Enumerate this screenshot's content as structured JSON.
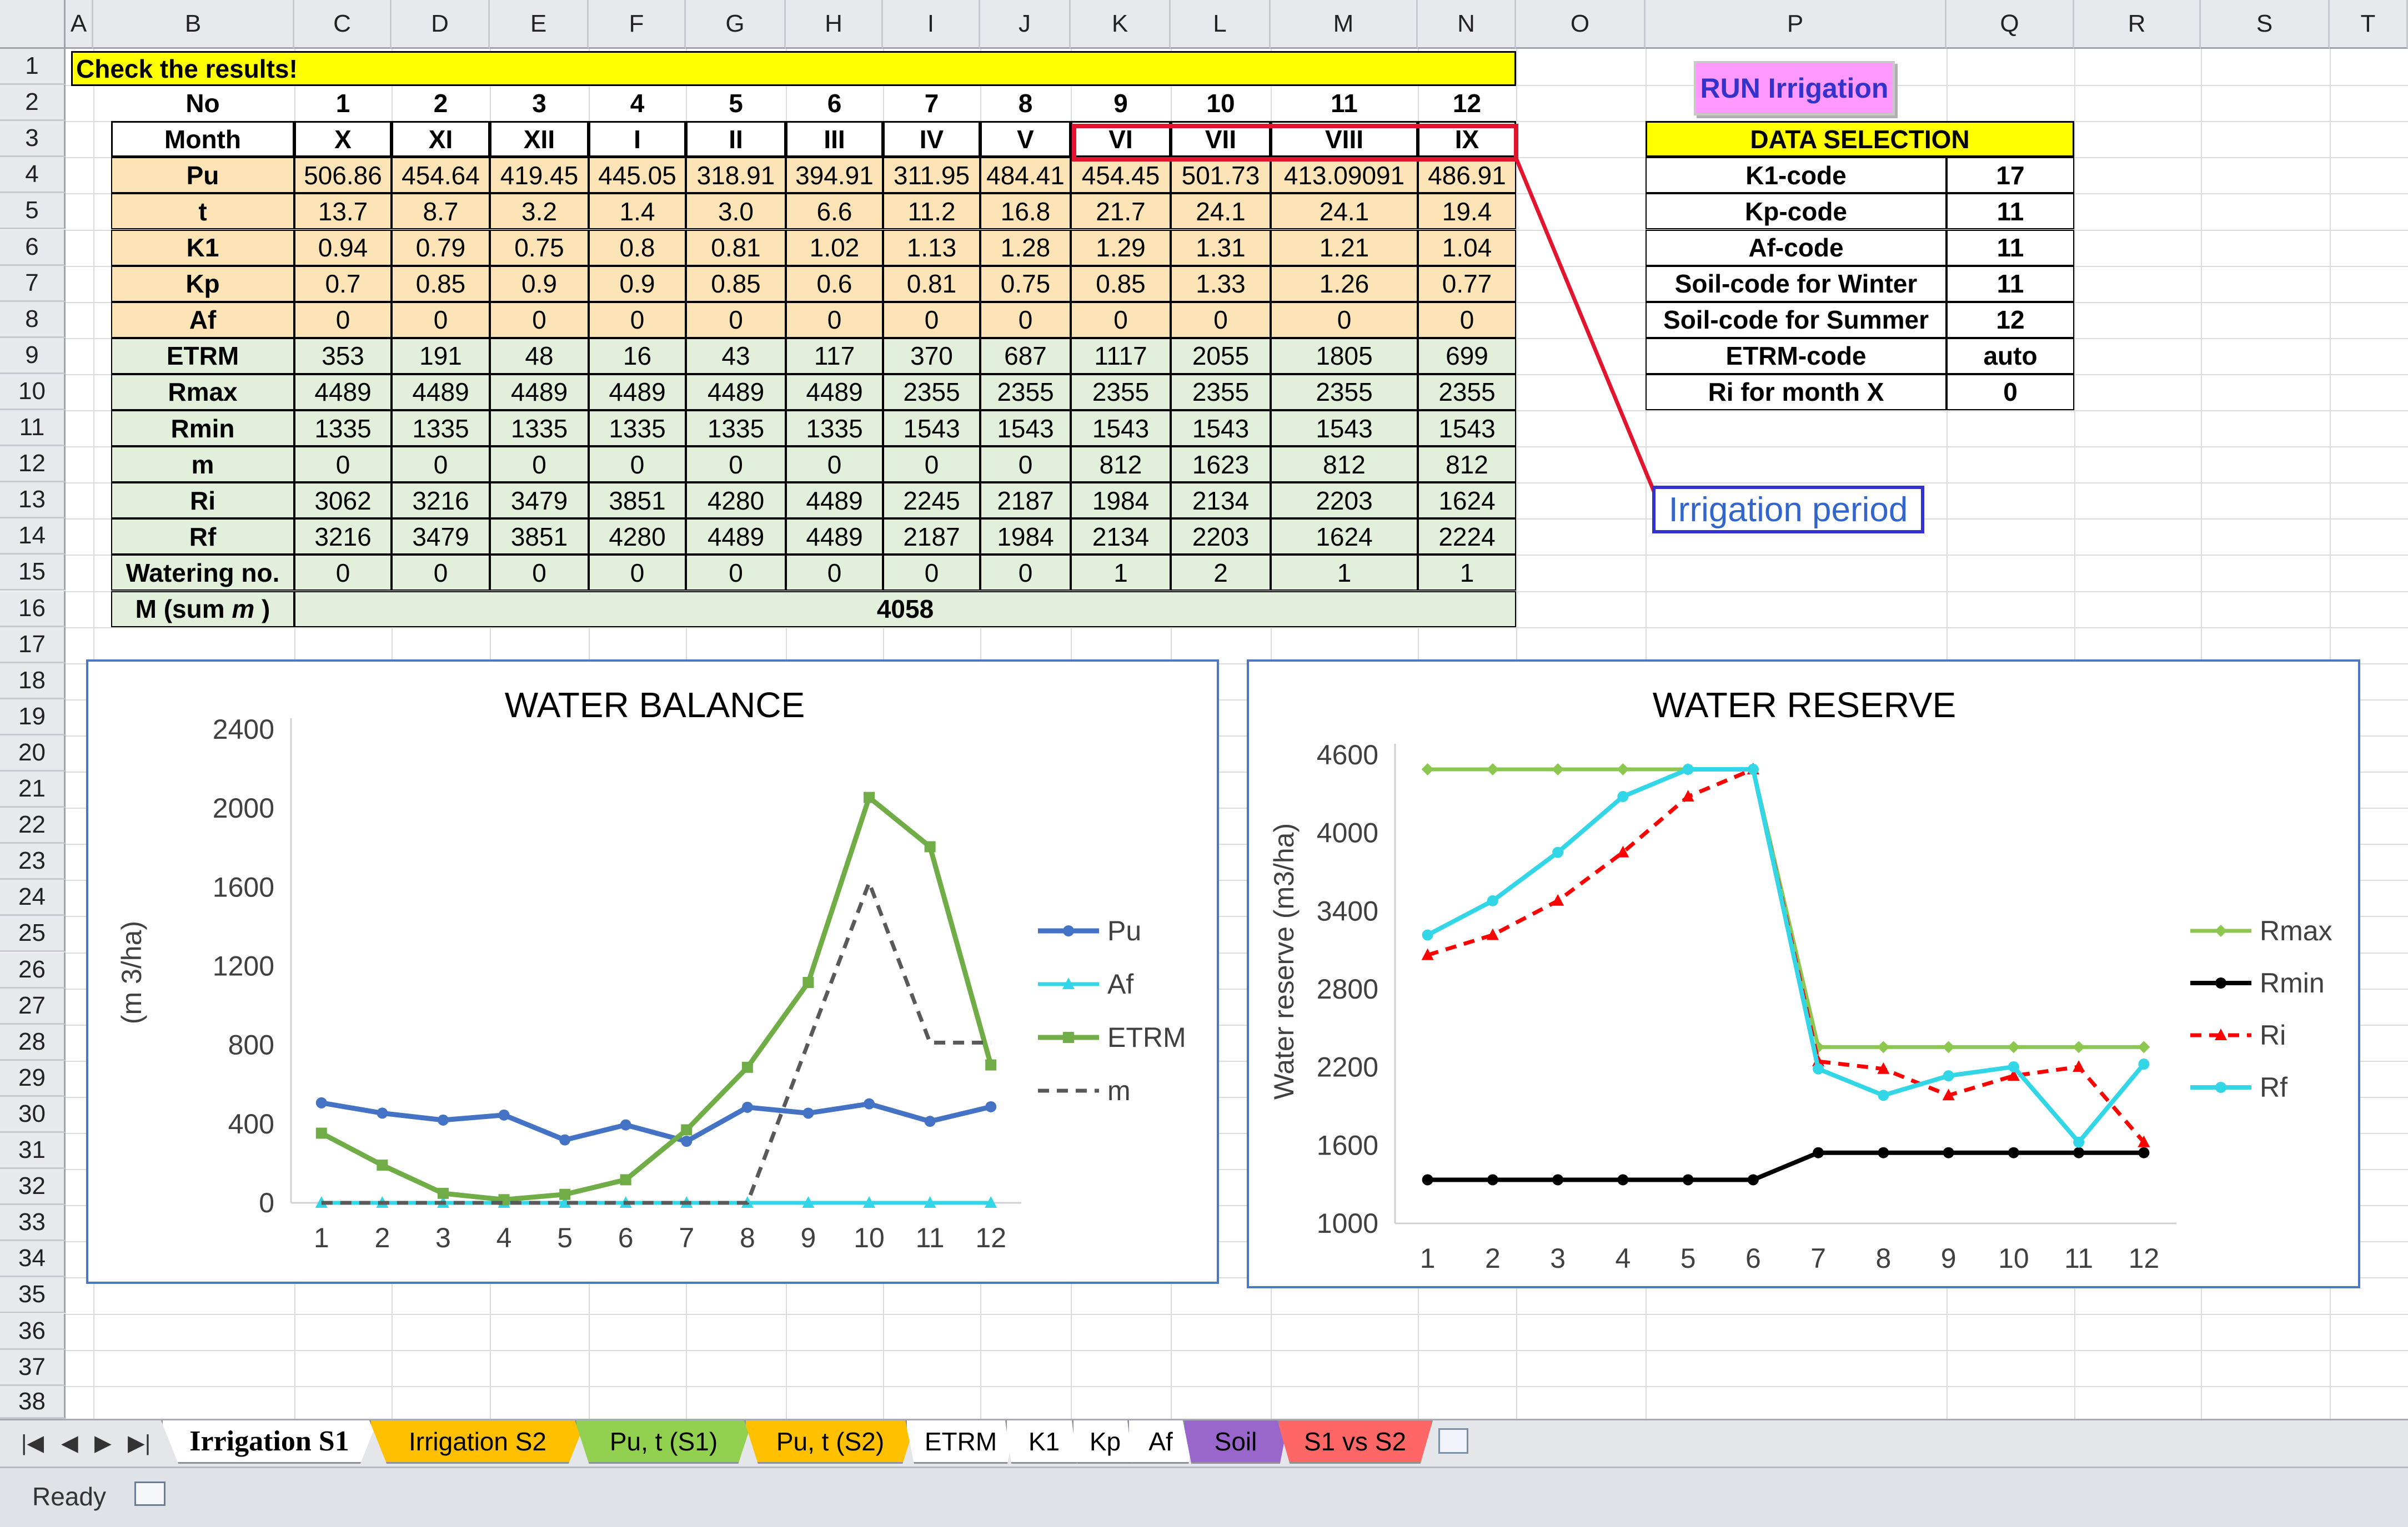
{
  "columns": [
    "A",
    "B",
    "C",
    "D",
    "E",
    "F",
    "G",
    "H",
    "I",
    "J",
    "K",
    "L",
    "M",
    "N",
    "O",
    "P",
    "Q",
    "R",
    "S",
    "T"
  ],
  "rows": [
    "1",
    "2",
    "3",
    "4",
    "5",
    "6",
    "7",
    "8",
    "9",
    "10",
    "11",
    "12",
    "13",
    "14",
    "15",
    "16",
    "17",
    "18",
    "19",
    "20",
    "21",
    "22",
    "23",
    "24",
    "25",
    "26",
    "27",
    "28",
    "29",
    "30",
    "31",
    "32",
    "33",
    "34",
    "35",
    "36",
    "37",
    "38"
  ],
  "banner": "Check the results!",
  "table": {
    "no_label": "No",
    "no_values": [
      "1",
      "2",
      "3",
      "4",
      "5",
      "6",
      "7",
      "8",
      "9",
      "10",
      "11",
      "12"
    ],
    "month_label": "Month",
    "months": [
      "X",
      "XI",
      "XII",
      "I",
      "II",
      "III",
      "IV",
      "V",
      "VI",
      "VII",
      "VIII",
      "IX"
    ],
    "params": [
      {
        "label": "Pu",
        "values": [
          "506.86",
          "454.64",
          "419.45",
          "445.05",
          "318.91",
          "394.91",
          "311.95",
          "484.41",
          "454.45",
          "501.73",
          "413.09091",
          "486.91"
        ]
      },
      {
        "label": "t",
        "values": [
          "13.7",
          "8.7",
          "3.2",
          "1.4",
          "3.0",
          "6.6",
          "11.2",
          "16.8",
          "21.7",
          "24.1",
          "24.1",
          "19.4"
        ]
      },
      {
        "label": "K1",
        "values": [
          "0.94",
          "0.79",
          "0.75",
          "0.8",
          "0.81",
          "1.02",
          "1.13",
          "1.28",
          "1.29",
          "1.31",
          "1.21",
          "1.04"
        ]
      },
      {
        "label": "Kp",
        "values": [
          "0.7",
          "0.85",
          "0.9",
          "0.9",
          "0.85",
          "0.6",
          "0.81",
          "0.75",
          "0.85",
          "1.33",
          "1.26",
          "0.77"
        ]
      },
      {
        "label": "Af",
        "values": [
          "0",
          "0",
          "0",
          "0",
          "0",
          "0",
          "0",
          "0",
          "0",
          "0",
          "0",
          "0"
        ]
      }
    ],
    "results": [
      {
        "label": "ETRM",
        "values": [
          "353",
          "191",
          "48",
          "16",
          "43",
          "117",
          "370",
          "687",
          "1117",
          "2055",
          "1805",
          "699"
        ]
      },
      {
        "label": "Rmax",
        "values": [
          "4489",
          "4489",
          "4489",
          "4489",
          "4489",
          "4489",
          "2355",
          "2355",
          "2355",
          "2355",
          "2355",
          "2355"
        ]
      },
      {
        "label": "Rmin",
        "values": [
          "1335",
          "1335",
          "1335",
          "1335",
          "1335",
          "1335",
          "1543",
          "1543",
          "1543",
          "1543",
          "1543",
          "1543"
        ]
      },
      {
        "label": "m",
        "values": [
          "0",
          "0",
          "0",
          "0",
          "0",
          "0",
          "0",
          "0",
          "812",
          "1623",
          "812",
          "812"
        ]
      },
      {
        "label": "Ri",
        "values": [
          "3062",
          "3216",
          "3479",
          "3851",
          "4280",
          "4489",
          "2245",
          "2187",
          "1984",
          "2134",
          "2203",
          "1624"
        ]
      },
      {
        "label": "Rf",
        "values": [
          "3216",
          "3479",
          "3851",
          "4280",
          "4489",
          "4489",
          "2187",
          "1984",
          "2134",
          "2203",
          "1624",
          "2224"
        ]
      },
      {
        "label": "Watering no.",
        "values": [
          "0",
          "0",
          "0",
          "0",
          "0",
          "0",
          "0",
          "0",
          "1",
          "2",
          "1",
          "1"
        ]
      }
    ],
    "msum_label_prefix": "M (sum ",
    "msum_label_var": "m",
    "msum_label_suffix": " )",
    "msum_value": "4058"
  },
  "run_button": "RUN Irrigation",
  "data_selection": {
    "title": "DATA SELECTION",
    "rows": [
      {
        "label": "K1-code",
        "value": "17"
      },
      {
        "label": "Kp-code",
        "value": "11"
      },
      {
        "label": "Af-code",
        "value": "11"
      },
      {
        "label": "Soil-code for Winter",
        "value": "11"
      },
      {
        "label": "Soil-code for Summer",
        "value": "12"
      },
      {
        "label": "ETRM-code",
        "value": "auto"
      },
      {
        "label": "Ri for month X",
        "value": "0"
      }
    ]
  },
  "irrigation_period_label": "Irrigation period",
  "colors": {
    "banner": "#ffff00",
    "param_fill": "#fce4b6",
    "result_fill": "#e2efda",
    "run_button_fill": "#ff99ff",
    "run_button_text": "#3333cc",
    "highlight": "#e3142d",
    "callout_border": "#3333cc",
    "callout_text": "#3366cc"
  },
  "chart_data": [
    {
      "type": "line",
      "title": "WATER BALANCE",
      "ylabel": "(m 3/ha)",
      "xlabel": "",
      "x": [
        1,
        2,
        3,
        4,
        5,
        6,
        7,
        8,
        9,
        10,
        11,
        12
      ],
      "ylim": [
        0,
        2400
      ],
      "yticks": [
        0,
        400,
        800,
        1200,
        1600,
        2000,
        2400
      ],
      "legend_position": "right",
      "series": [
        {
          "name": "Pu",
          "values": [
            506.86,
            454.64,
            419.45,
            445.05,
            318.91,
            394.91,
            311.95,
            484.41,
            454.45,
            501.73,
            413.09,
            486.91
          ],
          "color": "#4472c4"
        },
        {
          "name": "Af",
          "values": [
            0,
            0,
            0,
            0,
            0,
            0,
            0,
            0,
            0,
            0,
            0,
            0
          ],
          "color": "#33d6e6"
        },
        {
          "name": "ETRM",
          "values": [
            353,
            191,
            48,
            16,
            43,
            117,
            370,
            687,
            1117,
            2055,
            1805,
            699
          ],
          "color": "#70ad47"
        },
        {
          "name": "m",
          "values": [
            0,
            0,
            0,
            0,
            0,
            0,
            0,
            0,
            812,
            1623,
            812,
            812
          ],
          "color": "#595959"
        }
      ]
    },
    {
      "type": "line",
      "title": "WATER  RESERVE",
      "ylabel": "Water reserve (m3/ha)",
      "xlabel": "",
      "x": [
        1,
        2,
        3,
        4,
        5,
        6,
        7,
        8,
        9,
        10,
        11,
        12
      ],
      "ylim": [
        1000,
        4600
      ],
      "yticks": [
        1000,
        1600,
        2200,
        2800,
        3400,
        4000,
        4600
      ],
      "legend_position": "right",
      "series": [
        {
          "name": "Rmax",
          "values": [
            4489,
            4489,
            4489,
            4489,
            4489,
            4489,
            2355,
            2355,
            2355,
            2355,
            2355,
            2355
          ],
          "color": "#8cc850"
        },
        {
          "name": "Rmin",
          "values": [
            1335,
            1335,
            1335,
            1335,
            1335,
            1335,
            1543,
            1543,
            1543,
            1543,
            1543,
            1543
          ],
          "color": "#000000"
        },
        {
          "name": "Ri",
          "values": [
            3062,
            3216,
            3479,
            3851,
            4280,
            4489,
            2245,
            2187,
            1984,
            2134,
            2203,
            1624
          ],
          "color": "#ff0000"
        },
        {
          "name": "Rf",
          "values": [
            3216,
            3479,
            3851,
            4280,
            4489,
            4489,
            2187,
            1984,
            2134,
            2203,
            1624,
            2224
          ],
          "color": "#33d6e6"
        }
      ]
    }
  ],
  "sheet_tabs": [
    {
      "label": "Irrigation S1",
      "color": "#ffffff",
      "active": true
    },
    {
      "label": "Irrigation S2",
      "color": "#ffc000",
      "active": false
    },
    {
      "label": "Pu, t (S1)",
      "color": "#92d050",
      "active": false
    },
    {
      "label": "Pu, t (S2)",
      "color": "#ffc000",
      "active": false
    },
    {
      "label": "ETRM",
      "color": "#ffffff",
      "active": false
    },
    {
      "label": "K1",
      "color": "#ffffff",
      "active": false
    },
    {
      "label": "Kp",
      "color": "#ffffff",
      "active": false
    },
    {
      "label": "Af",
      "color": "#ffffff",
      "active": false
    },
    {
      "label": "Soil",
      "color": "#9966cc",
      "active": false
    },
    {
      "label": "S1 vs S2",
      "color": "#ff6666",
      "active": false
    }
  ],
  "status_text": "Ready",
  "icons": {
    "nav": [
      "first-sheet-icon",
      "prev-sheet-icon",
      "next-sheet-icon",
      "last-sheet-icon"
    ],
    "new_sheet": "insert-sheet-icon",
    "macro": "macro-record-icon"
  }
}
